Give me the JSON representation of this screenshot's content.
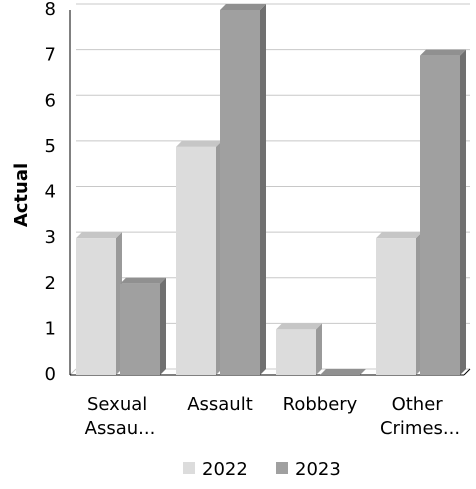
{
  "chart_data": {
    "type": "bar",
    "y_label": "Actual",
    "categories": [
      "Sexual Assau...",
      "Assault",
      "Robbery",
      "Other Crimes..."
    ],
    "series": [
      {
        "name": "2022",
        "color": "#dcdcdc",
        "values": [
          3,
          5,
          1,
          3
        ]
      },
      {
        "name": "2023",
        "color": "#a0a0a0",
        "values": [
          2,
          8,
          0,
          7
        ]
      }
    ],
    "ylim": [
      0,
      8
    ],
    "yticks": [
      0,
      1,
      2,
      3,
      4,
      5,
      6,
      7,
      8
    ],
    "grid": true,
    "legend": "bottom"
  }
}
